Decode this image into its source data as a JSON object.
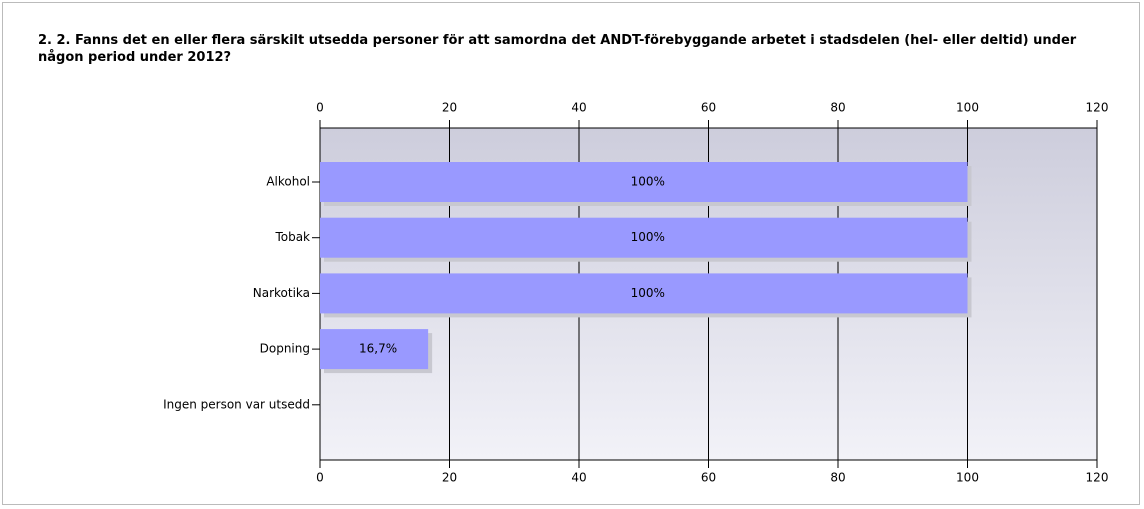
{
  "chart_data": {
    "type": "bar",
    "orientation": "horizontal",
    "title": "2. 2. Fanns det en eller flera särskilt utsedda personer för att samordna det ANDT-förebyggande arbetet i stadsdelen (hel- eller deltid) under någon period under 2012?",
    "categories": [
      "Alkohol",
      "Tobak",
      "Narkotika",
      "Dopning",
      "Ingen person var utsedd"
    ],
    "values": [
      100,
      100,
      100,
      16.7,
      0
    ],
    "value_labels": [
      "100%",
      "100%",
      "100%",
      "16,7%",
      null
    ],
    "color": "#9999ff",
    "xlim": [
      0,
      120
    ],
    "xticks": [
      0,
      20,
      40,
      60,
      80,
      100,
      120
    ],
    "grid": true
  }
}
